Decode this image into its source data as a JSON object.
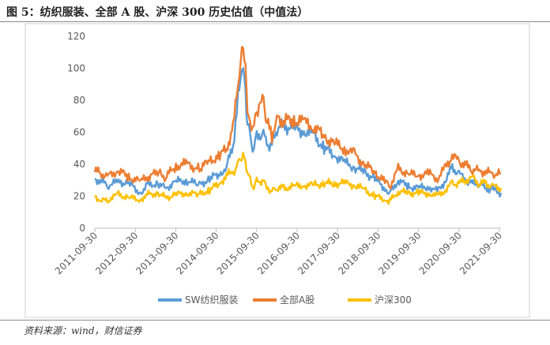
{
  "figure": {
    "title": "图 5：纺织服装、全部 A 股、沪深 300 历史估值（中值法）",
    "source": "资料来源：wind，财信证券"
  },
  "chart_data": {
    "type": "line",
    "ylim": [
      0,
      120
    ],
    "yticks": [
      0,
      20,
      40,
      60,
      80,
      100,
      120
    ],
    "xlim": [
      "2011-09-30",
      "2021-10-15"
    ],
    "xticks": [
      "2011-09-30",
      "2012-09-30",
      "2013-09-30",
      "2014-09-30",
      "2015-09-30",
      "2016-09-30",
      "2017-09-30",
      "2018-09-30",
      "2019-09-30",
      "2020-09-30",
      "2021-09-30"
    ],
    "grid": false,
    "legend_position": "bottom",
    "series": [
      {
        "name": "SW纺织服装",
        "color": "#5b9bd5",
        "points": [
          [
            "2011-09-30",
            31
          ],
          [
            "2011-12-01",
            29
          ],
          [
            "2012-02-01",
            27
          ],
          [
            "2012-05-01",
            29
          ],
          [
            "2012-08-01",
            28
          ],
          [
            "2012-11-15",
            22
          ],
          [
            "2013-01-15",
            27
          ],
          [
            "2013-05-01",
            28
          ],
          [
            "2013-07-01",
            25
          ],
          [
            "2013-10-01",
            29
          ],
          [
            "2014-01-01",
            30
          ],
          [
            "2014-05-01",
            27
          ],
          [
            "2014-08-01",
            31
          ],
          [
            "2014-11-01",
            34
          ],
          [
            "2015-01-01",
            38
          ],
          [
            "2015-03-01",
            52
          ],
          [
            "2015-04-15",
            80
          ],
          [
            "2015-05-20",
            100
          ],
          [
            "2015-06-12",
            97
          ],
          [
            "2015-07-10",
            65
          ],
          [
            "2015-08-25",
            50
          ],
          [
            "2015-10-01",
            57
          ],
          [
            "2015-12-01",
            60
          ],
          [
            "2016-01-01",
            53
          ],
          [
            "2016-02-15",
            52
          ],
          [
            "2016-04-01",
            62
          ],
          [
            "2016-06-01",
            64
          ],
          [
            "2016-09-01",
            62
          ],
          [
            "2016-12-01",
            61
          ],
          [
            "2017-03-01",
            58
          ],
          [
            "2017-06-01",
            50
          ],
          [
            "2017-09-01",
            46
          ],
          [
            "2017-12-01",
            41
          ],
          [
            "2018-03-01",
            38
          ],
          [
            "2018-06-01",
            35
          ],
          [
            "2018-09-01",
            31
          ],
          [
            "2018-12-01",
            25
          ],
          [
            "2019-01-15",
            22
          ],
          [
            "2019-04-01",
            30
          ],
          [
            "2019-07-01",
            26
          ],
          [
            "2019-10-01",
            25
          ],
          [
            "2020-01-01",
            26
          ],
          [
            "2020-03-20",
            23
          ],
          [
            "2020-06-01",
            30
          ],
          [
            "2020-08-01",
            38
          ],
          [
            "2020-10-01",
            34
          ],
          [
            "2020-12-01",
            30
          ],
          [
            "2021-02-01",
            28
          ],
          [
            "2021-04-01",
            28
          ],
          [
            "2021-06-01",
            25
          ],
          [
            "2021-08-01",
            24
          ],
          [
            "2021-10-15",
            22
          ]
        ]
      },
      {
        "name": "全部A股",
        "color": "#ed7d31",
        "points": [
          [
            "2011-09-30",
            36
          ],
          [
            "2011-12-01",
            34
          ],
          [
            "2012-02-01",
            33
          ],
          [
            "2012-05-01",
            36
          ],
          [
            "2012-08-01",
            32
          ],
          [
            "2012-11-15",
            29
          ],
          [
            "2013-01-15",
            32
          ],
          [
            "2013-05-01",
            35
          ],
          [
            "2013-07-01",
            32
          ],
          [
            "2013-10-01",
            39
          ],
          [
            "2014-01-01",
            40
          ],
          [
            "2014-05-01",
            37
          ],
          [
            "2014-08-01",
            42
          ],
          [
            "2014-11-01",
            45
          ],
          [
            "2015-01-01",
            50
          ],
          [
            "2015-03-01",
            62
          ],
          [
            "2015-04-15",
            90
          ],
          [
            "2015-05-20",
            112
          ],
          [
            "2015-06-12",
            108
          ],
          [
            "2015-07-10",
            76
          ],
          [
            "2015-08-25",
            60
          ],
          [
            "2015-10-01",
            72
          ],
          [
            "2015-12-01",
            80
          ],
          [
            "2016-01-01",
            66
          ],
          [
            "2016-02-15",
            58
          ],
          [
            "2016-04-01",
            69
          ],
          [
            "2016-06-01",
            67
          ],
          [
            "2016-09-01",
            68
          ],
          [
            "2016-12-01",
            66
          ],
          [
            "2017-03-01",
            64
          ],
          [
            "2017-06-01",
            57
          ],
          [
            "2017-09-01",
            53
          ],
          [
            "2017-12-01",
            50
          ],
          [
            "2018-03-01",
            46
          ],
          [
            "2018-06-01",
            40
          ],
          [
            "2018-09-01",
            35
          ],
          [
            "2018-12-01",
            29
          ],
          [
            "2019-01-15",
            26
          ],
          [
            "2019-04-01",
            37
          ],
          [
            "2019-07-01",
            34
          ],
          [
            "2019-10-01",
            33
          ],
          [
            "2020-01-01",
            34
          ],
          [
            "2020-03-20",
            31
          ],
          [
            "2020-06-01",
            38
          ],
          [
            "2020-08-01",
            45
          ],
          [
            "2020-10-01",
            42
          ],
          [
            "2020-12-01",
            39
          ],
          [
            "2021-02-01",
            37
          ],
          [
            "2021-04-01",
            36
          ],
          [
            "2021-06-01",
            35
          ],
          [
            "2021-08-01",
            34
          ],
          [
            "2021-10-15",
            34
          ]
        ]
      },
      {
        "name": "沪深300",
        "color": "#ffc000",
        "points": [
          [
            "2011-09-30",
            20
          ],
          [
            "2011-12-01",
            17
          ],
          [
            "2012-02-01",
            18
          ],
          [
            "2012-05-01",
            21
          ],
          [
            "2012-08-01",
            19
          ],
          [
            "2012-11-15",
            18
          ],
          [
            "2013-01-15",
            21
          ],
          [
            "2013-05-01",
            22
          ],
          [
            "2013-07-01",
            19
          ],
          [
            "2013-10-01",
            21
          ],
          [
            "2014-01-01",
            22
          ],
          [
            "2014-05-01",
            21
          ],
          [
            "2014-08-01",
            24
          ],
          [
            "2014-11-01",
            28
          ],
          [
            "2015-01-01",
            33
          ],
          [
            "2015-03-01",
            35
          ],
          [
            "2015-04-15",
            40
          ],
          [
            "2015-05-20",
            45
          ],
          [
            "2015-06-12",
            46
          ],
          [
            "2015-07-10",
            34
          ],
          [
            "2015-08-25",
            26
          ],
          [
            "2015-10-01",
            29
          ],
          [
            "2015-12-01",
            30
          ],
          [
            "2016-01-01",
            26
          ],
          [
            "2016-02-15",
            23
          ],
          [
            "2016-04-01",
            25
          ],
          [
            "2016-06-01",
            25
          ],
          [
            "2016-09-01",
            26
          ],
          [
            "2016-12-01",
            27
          ],
          [
            "2017-03-01",
            27
          ],
          [
            "2017-06-01",
            28
          ],
          [
            "2017-09-01",
            28
          ],
          [
            "2017-12-01",
            28
          ],
          [
            "2018-03-01",
            27
          ],
          [
            "2018-06-01",
            24
          ],
          [
            "2018-09-01",
            20
          ],
          [
            "2018-12-01",
            18
          ],
          [
            "2019-01-15",
            17
          ],
          [
            "2019-04-01",
            23
          ],
          [
            "2019-07-01",
            22
          ],
          [
            "2019-10-01",
            22
          ],
          [
            "2020-01-01",
            22
          ],
          [
            "2020-03-20",
            20
          ],
          [
            "2020-06-01",
            24
          ],
          [
            "2020-08-01",
            28
          ],
          [
            "2020-10-01",
            28
          ],
          [
            "2020-12-01",
            30
          ],
          [
            "2021-02-01",
            32
          ],
          [
            "2021-04-01",
            28
          ],
          [
            "2021-06-01",
            28
          ],
          [
            "2021-08-01",
            26
          ],
          [
            "2021-10-15",
            25
          ]
        ]
      }
    ]
  }
}
